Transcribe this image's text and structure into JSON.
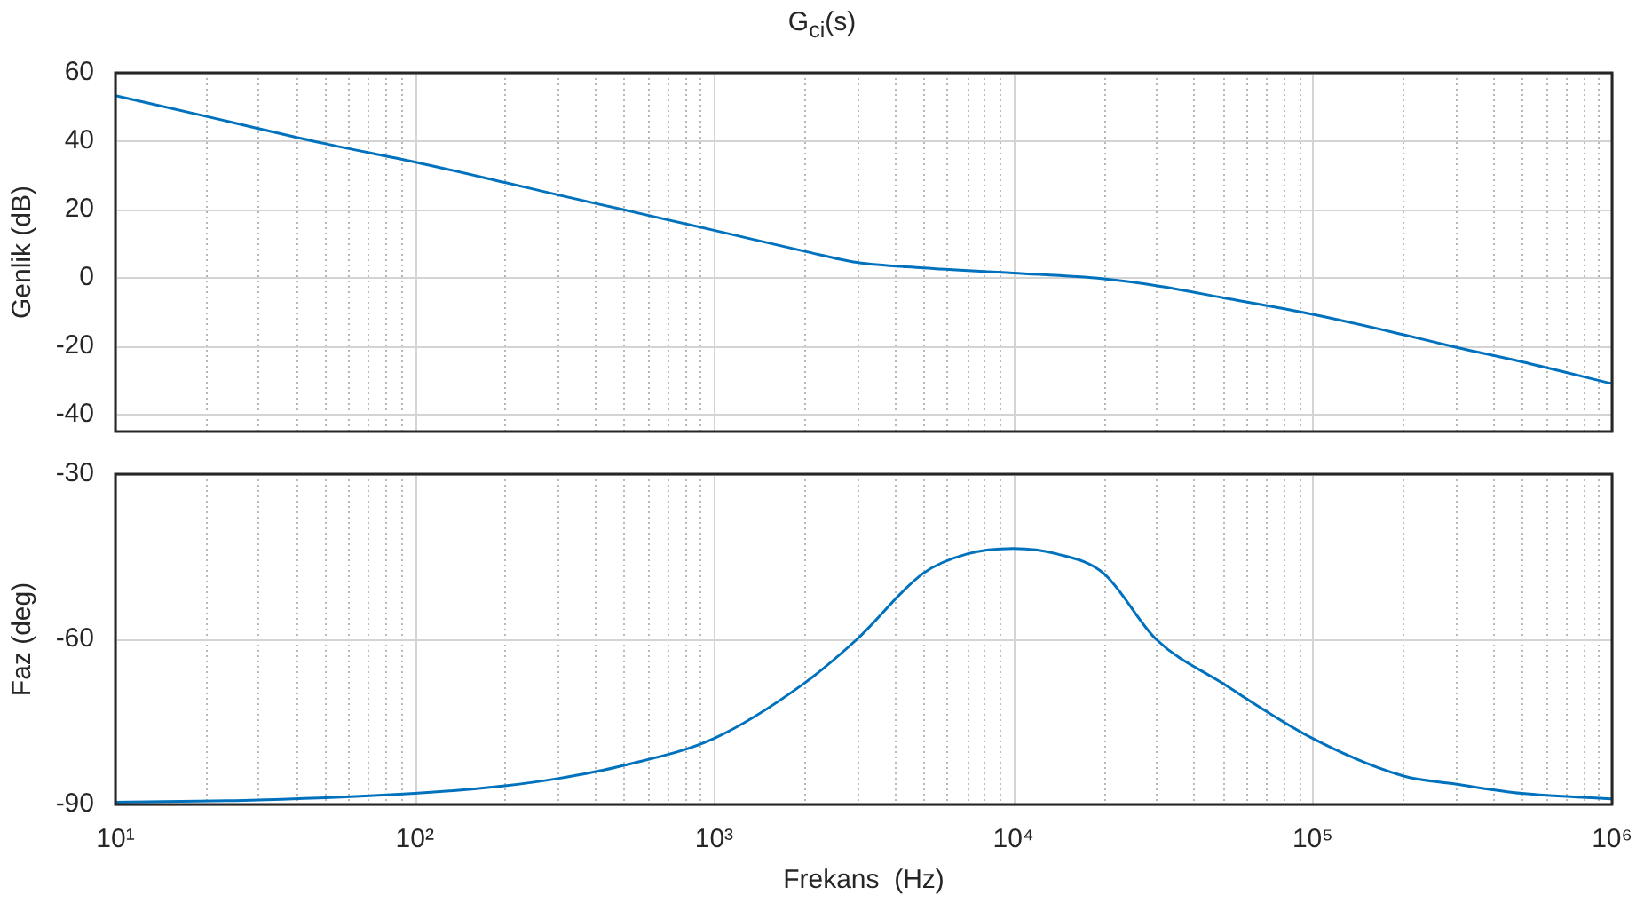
{
  "chart_data": [
    {
      "type": "line",
      "title": "G$_{ci}$(s)",
      "ylabel": "Genlik (dB)",
      "log": "x",
      "grid": true,
      "legend": false,
      "tick_labels": "y",
      "marker": "none",
      "line_style": "solid",
      "xlim": [
        10,
        1000000
      ],
      "xticks": [
        {
          "value": 10,
          "label": null
        },
        {
          "value": 20,
          "label": null
        },
        {
          "value": 30,
          "label": null
        },
        {
          "value": 40,
          "label": null
        },
        {
          "value": 50,
          "label": null
        },
        {
          "value": 60,
          "label": null
        },
        {
          "value": 70,
          "label": null
        },
        {
          "value": 80,
          "label": null
        },
        {
          "value": 90,
          "label": null
        },
        {
          "value": 100,
          "label": null
        },
        {
          "value": 200,
          "label": null
        },
        {
          "value": 300,
          "label": null
        },
        {
          "value": 400,
          "label": null
        },
        {
          "value": 500,
          "label": null
        },
        {
          "value": 600,
          "label": null
        },
        {
          "value": 700,
          "label": null
        },
        {
          "value": 800,
          "label": null
        },
        {
          "value": 900,
          "label": null
        },
        {
          "value": 1000,
          "label": null
        },
        {
          "value": 2000,
          "label": null
        },
        {
          "value": 3000,
          "label": null
        },
        {
          "value": 4000,
          "label": null
        },
        {
          "value": 5000,
          "label": null
        },
        {
          "value": 6000,
          "label": null
        },
        {
          "value": 7000,
          "label": null
        },
        {
          "value": 8000,
          "label": null
        },
        {
          "value": 9000,
          "label": null
        },
        {
          "value": 10000,
          "label": null
        },
        {
          "value": 20000,
          "label": null
        },
        {
          "value": 30000,
          "label": null
        },
        {
          "value": 40000,
          "label": null
        },
        {
          "value": 50000,
          "label": null
        },
        {
          "value": 60000,
          "label": null
        },
        {
          "value": 70000,
          "label": null
        },
        {
          "value": 80000,
          "label": null
        },
        {
          "value": 90000,
          "label": null
        },
        {
          "value": 100000,
          "label": null
        },
        {
          "value": 200000,
          "label": null
        },
        {
          "value": 300000,
          "label": null
        },
        {
          "value": 400000,
          "label": null
        },
        {
          "value": 500000,
          "label": null
        },
        {
          "value": 600000,
          "label": null
        },
        {
          "value": 700000,
          "label": null
        },
        {
          "value": 800000,
          "label": null
        },
        {
          "value": 900000,
          "label": null
        },
        {
          "value": 1000000,
          "label": null
        }
      ],
      "ylim": [
        -45,
        60
      ],
      "yticks": [
        -40,
        -20,
        0,
        20,
        40,
        60
      ],
      "series": [
        {
          "color": "#0072bd",
          "x": [
            10,
            20,
            30,
            50,
            100,
            200,
            300,
            500,
            1000,
            2000,
            3000,
            5000,
            10000,
            20000,
            30000,
            50000,
            100000,
            200000,
            300000,
            500000,
            1000000
          ],
          "values": [
            53.3,
            47.3,
            43.7,
            39.3,
            33.9,
            27.9,
            24.3,
            19.9,
            13.9,
            7.8,
            4.5,
            2.9,
            1.4,
            -0.3,
            -2.3,
            -5.8,
            -10.7,
            -16.6,
            -20.3,
            -24.6,
            -31
          ]
        }
      ]
    },
    {
      "type": "line",
      "xlabel": "Frekans  (Hz)",
      "ylabel": "Faz (deg)",
      "log": "x",
      "grid": true,
      "legend": false,
      "marker": "none",
      "line_style": "solid",
      "xlim": [
        10,
        1000000
      ],
      "xticks": [
        {
          "value": 10,
          "label": "10¹"
        },
        {
          "value": 20,
          "label": null
        },
        {
          "value": 30,
          "label": null
        },
        {
          "value": 40,
          "label": null
        },
        {
          "value": 50,
          "label": null
        },
        {
          "value": 60,
          "label": null
        },
        {
          "value": 70,
          "label": null
        },
        {
          "value": 80,
          "label": null
        },
        {
          "value": 90,
          "label": null
        },
        {
          "value": 100,
          "label": "10²"
        },
        {
          "value": 200,
          "label": null
        },
        {
          "value": 300,
          "label": null
        },
        {
          "value": 400,
          "label": null
        },
        {
          "value": 500,
          "label": null
        },
        {
          "value": 600,
          "label": null
        },
        {
          "value": 700,
          "label": null
        },
        {
          "value": 800,
          "label": null
        },
        {
          "value": 900,
          "label": null
        },
        {
          "value": 1000,
          "label": "10³"
        },
        {
          "value": 2000,
          "label": null
        },
        {
          "value": 3000,
          "label": null
        },
        {
          "value": 4000,
          "label": null
        },
        {
          "value": 5000,
          "label": null
        },
        {
          "value": 6000,
          "label": null
        },
        {
          "value": 7000,
          "label": null
        },
        {
          "value": 8000,
          "label": null
        },
        {
          "value": 9000,
          "label": null
        },
        {
          "value": 10000,
          "label": "10⁴"
        },
        {
          "value": 20000,
          "label": null
        },
        {
          "value": 30000,
          "label": null
        },
        {
          "value": 40000,
          "label": null
        },
        {
          "value": 50000,
          "label": null
        },
        {
          "value": 60000,
          "label": null
        },
        {
          "value": 70000,
          "label": null
        },
        {
          "value": 80000,
          "label": null
        },
        {
          "value": 90000,
          "label": null
        },
        {
          "value": 100000,
          "label": "10⁵"
        },
        {
          "value": 200000,
          "label": null
        },
        {
          "value": 300000,
          "label": null
        },
        {
          "value": 400000,
          "label": null
        },
        {
          "value": 500000,
          "label": null
        },
        {
          "value": 600000,
          "label": null
        },
        {
          "value": 700000,
          "label": null
        },
        {
          "value": 800000,
          "label": null
        },
        {
          "value": 900000,
          "label": null
        },
        {
          "value": 1000000,
          "label": "10⁶"
        }
      ],
      "ylim": [
        -90,
        -30
      ],
      "yticks": [
        -90,
        -60,
        -30
      ],
      "series": [
        {
          "color": "#0072bd",
          "x": [
            10,
            30,
            100,
            200,
            300,
            500,
            1000,
            2000,
            3000,
            5000,
            7000,
            10000,
            14000,
            20000,
            30000,
            50000,
            100000,
            200000,
            300000,
            500000,
            1000000
          ],
          "values": [
            -89.6,
            -89.2,
            -88,
            -86.6,
            -85.3,
            -82.9,
            -78,
            -68,
            -60,
            -48,
            -44.5,
            -43.5,
            -44.5,
            -48,
            -60,
            -68,
            -78,
            -84.8,
            -86.3,
            -88,
            -89
          ]
        }
      ]
    }
  ]
}
